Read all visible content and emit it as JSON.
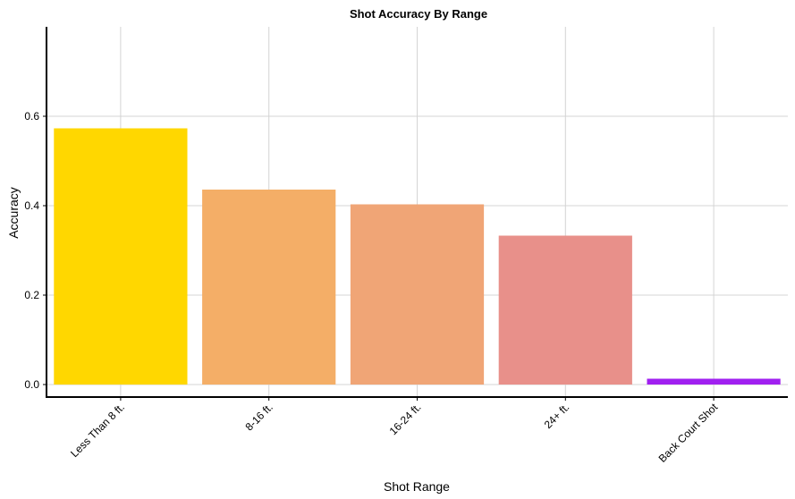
{
  "chart_data": {
    "type": "bar",
    "title": "Shot Accuracy By Range",
    "xlabel": "Shot Range",
    "ylabel": "Accuracy",
    "categories": [
      "Less Than 8 ft.",
      "8-16 ft.",
      "16-24 ft.",
      "24+ ft.",
      "Back Court Shot"
    ],
    "values": [
      0.573,
      0.436,
      0.403,
      0.333,
      0.013
    ],
    "colors": [
      "#FFD700",
      "#F4AE67",
      "#F0A576",
      "#E8908A",
      "#A020F0"
    ],
    "yticks": [
      0.0,
      0.2,
      0.4,
      0.6
    ],
    "ylim": [
      -0.028,
      0.8
    ],
    "grid": true,
    "legend": "none"
  }
}
